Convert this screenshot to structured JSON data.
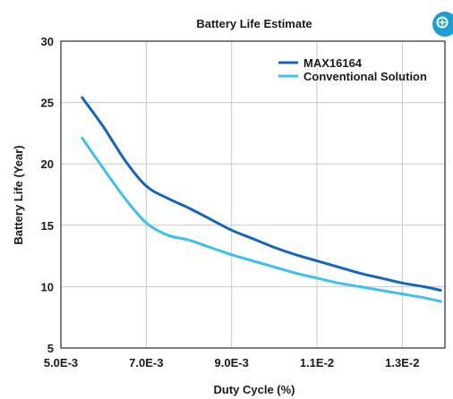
{
  "chart_data": {
    "type": "line",
    "title": "Battery Life Estimate",
    "xlabel": "Duty Cycle (%)",
    "ylabel": "Battery Life (Year)",
    "xlim": [
      0.005,
      0.014
    ],
    "ylim": [
      5,
      30
    ],
    "xticks": [
      0.005,
      0.007,
      0.009,
      0.011,
      0.013
    ],
    "xtick_labels": [
      "5.0E-3",
      "7.0E-3",
      "9.0E-3",
      "1.1E-2",
      "1.3E-2"
    ],
    "yticks": [
      5,
      10,
      15,
      20,
      25,
      30
    ],
    "ytick_labels": [
      "5",
      "10",
      "15",
      "20",
      "25",
      "30"
    ],
    "grid": true,
    "legend_position": "top-right",
    "series": [
      {
        "name": "MAX16164",
        "color": "#1565b8",
        "x": [
          0.0055,
          0.006,
          0.0065,
          0.007,
          0.0075,
          0.008,
          0.0085,
          0.009,
          0.0095,
          0.01,
          0.0105,
          0.011,
          0.0115,
          0.012,
          0.0125,
          0.013,
          0.0135,
          0.0139
        ],
        "y": [
          25.4,
          23.0,
          20.3,
          18.2,
          17.2,
          16.4,
          15.5,
          14.6,
          13.9,
          13.2,
          12.6,
          12.1,
          11.6,
          11.1,
          10.7,
          10.3,
          10.0,
          9.7
        ]
      },
      {
        "name": "Conventional Solution",
        "color": "#3cc0f0",
        "x": [
          0.0055,
          0.006,
          0.0065,
          0.007,
          0.0075,
          0.008,
          0.0085,
          0.009,
          0.0095,
          0.01,
          0.0105,
          0.011,
          0.0115,
          0.012,
          0.0125,
          0.013,
          0.0135,
          0.0139
        ],
        "y": [
          22.1,
          19.6,
          17.2,
          15.2,
          14.2,
          13.8,
          13.2,
          12.6,
          12.1,
          11.6,
          11.1,
          10.7,
          10.3,
          10.0,
          9.7,
          9.4,
          9.1,
          8.8
        ]
      }
    ]
  }
}
